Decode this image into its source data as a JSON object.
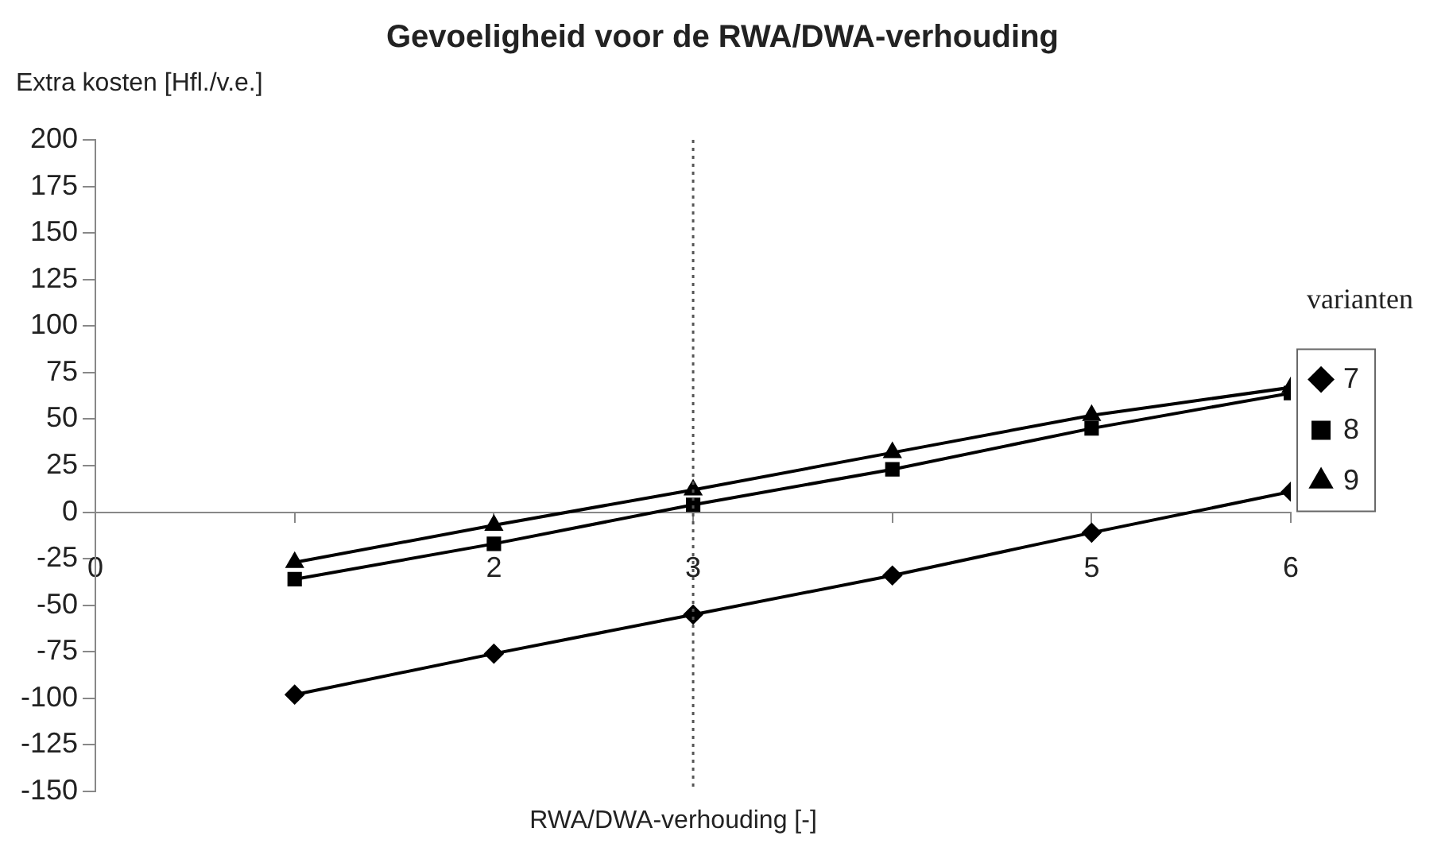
{
  "chart_data": {
    "type": "line",
    "title": "Gevoeligheid voor de RWA/DWA-verhouding",
    "xlabel": "RWA/DWA-verhouding [-]",
    "ylabel": "Extra kosten [Hfl./v.e.]",
    "legend_title": "varianten",
    "x": [
      1,
      2,
      3,
      4,
      5,
      6
    ],
    "series": [
      {
        "name": "7",
        "color": "#000000",
        "marker": "diamond",
        "values": [
          -98,
          -76,
          -55,
          -34,
          -11,
          11
        ]
      },
      {
        "name": "8",
        "color": "#000000",
        "marker": "square",
        "values": [
          -36,
          -17,
          4,
          23,
          45,
          64
        ]
      },
      {
        "name": "9",
        "color": "#000000",
        "marker": "triangle",
        "values": [
          -27,
          -7,
          12,
          32,
          52,
          67
        ]
      }
    ],
    "xlim": [
      0,
      6
    ],
    "xticks": [
      0,
      {
        "value": 1,
        "label": null
      },
      2,
      3,
      {
        "value": 4,
        "label": null
      },
      5,
      6
    ],
    "ylim": [
      -150,
      200
    ],
    "yticks": [
      -150,
      -125,
      -100,
      -75,
      -50,
      -25,
      0,
      25,
      50,
      75,
      100,
      125,
      150,
      175,
      200
    ],
    "ref_lines": [
      {
        "axis": "x",
        "value": 3,
        "line_style": "dotted"
      }
    ],
    "grid": false,
    "legend": "right",
    "line_style": "solid"
  }
}
